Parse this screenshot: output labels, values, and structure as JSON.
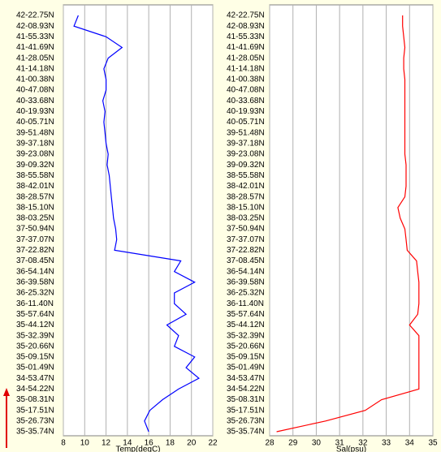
{
  "chart_data": [
    {
      "type": "line",
      "orientation": "vertical",
      "x_label": "Temp(degC)",
      "categories": [
        "42-22.75N",
        "42-08.93N",
        "41-55.33N",
        "41-41.69N",
        "41-28.05N",
        "41-14.18N",
        "41-00.38N",
        "40-47.08N",
        "40-33.68N",
        "40-19.93N",
        "40-05.71N",
        "39-51.48N",
        "39-37.18N",
        "39-23.08N",
        "39-09.32N",
        "38-55.58N",
        "38-42.01N",
        "38-28.57N",
        "38-15.10N",
        "38-03.25N",
        "37-50.94N",
        "37-37.07N",
        "37-22.82N",
        "37-08.45N",
        "36-54.14N",
        "36-39.58N",
        "36-25.32N",
        "36-11.40N",
        "35-57.64N",
        "35-44.12N",
        "35-32.39N",
        "35-20.66N",
        "35-09.15N",
        "35-01.49N",
        "34-53.47N",
        "34-54.22N",
        "35-08.31N",
        "35-17.51N",
        "35-26.73N",
        "35-35.74N"
      ],
      "series": [
        {
          "name": "Temp",
          "color": "#0000ff",
          "values": [
            9.4,
            9.0,
            12.0,
            13.5,
            12.2,
            11.8,
            12.0,
            12.0,
            11.7,
            11.9,
            11.8,
            11.9,
            12.0,
            12.2,
            12.1,
            12.3,
            12.4,
            12.5,
            12.6,
            12.7,
            12.9,
            13.0,
            12.8,
            19.0,
            18.4,
            20.3,
            18.4,
            18.4,
            19.5,
            17.7,
            18.8,
            18.4,
            20.3,
            19.5,
            20.7,
            18.8,
            17.3,
            16.1,
            15.6,
            16.0
          ]
        }
      ],
      "xlim": [
        8,
        22
      ],
      "xticks": [
        8,
        10,
        12,
        14,
        16,
        18,
        20,
        22
      ],
      "grid": true
    },
    {
      "type": "line",
      "orientation": "vertical",
      "x_label": "Sal(psu)",
      "categories": [
        "42-22.75N",
        "42-08.93N",
        "41-55.33N",
        "41-41.69N",
        "41-28.05N",
        "41-14.18N",
        "41-00.38N",
        "40-47.08N",
        "40-33.68N",
        "40-19.93N",
        "40-05.71N",
        "39-51.48N",
        "39-37.18N",
        "39-23.08N",
        "39-09.32N",
        "38-55.58N",
        "38-42.01N",
        "38-28.57N",
        "38-15.10N",
        "38-03.25N",
        "37-50.94N",
        "37-37.07N",
        "37-22.82N",
        "37-08.45N",
        "36-54.14N",
        "36-39.58N",
        "36-25.32N",
        "36-11.40N",
        "35-57.64N",
        "35-44.12N",
        "35-32.39N",
        "35-20.66N",
        "35-09.15N",
        "35-01.49N",
        "34-53.47N",
        "34-54.22N",
        "35-08.31N",
        "35-17.51N",
        "35-26.73N",
        "35-35.74N"
      ],
      "series": [
        {
          "name": "Sal",
          "color": "#ff0000",
          "values": [
            33.7,
            33.7,
            33.75,
            33.8,
            33.75,
            33.75,
            33.8,
            33.8,
            33.8,
            33.8,
            33.8,
            33.8,
            33.8,
            33.8,
            33.85,
            33.85,
            33.85,
            33.8,
            33.5,
            33.6,
            33.8,
            33.85,
            33.9,
            34.3,
            34.35,
            34.4,
            34.4,
            34.4,
            34.35,
            34.0,
            34.4,
            34.4,
            34.4,
            34.4,
            34.4,
            34.4,
            32.8,
            32.1,
            30.4,
            28.3
          ]
        }
      ],
      "xlim": [
        28,
        35
      ],
      "xticks": [
        28,
        29,
        30,
        31,
        32,
        33,
        34,
        35
      ],
      "grid": true
    }
  ]
}
